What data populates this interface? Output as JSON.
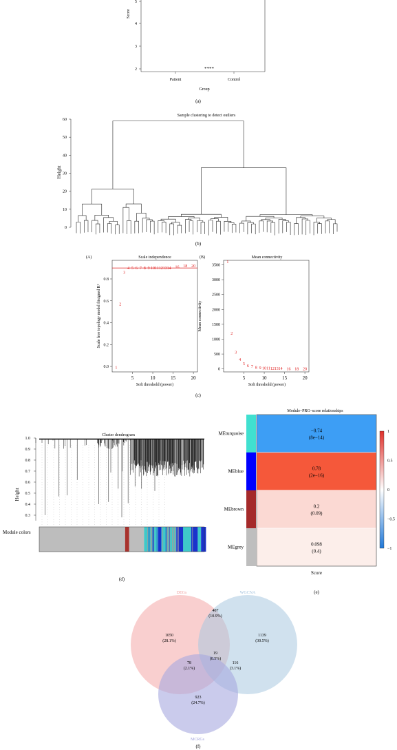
{
  "chart_data": [
    {
      "id": "a",
      "type": "box",
      "panel_label": "(a)",
      "ylabel": "Score",
      "xlabel": "Group",
      "yticks": [
        "2",
        "3",
        "4",
        "5"
      ],
      "categories": [
        "Patient",
        "Control"
      ],
      "significance": "****"
    },
    {
      "id": "b",
      "type": "dendrogram",
      "panel_label": "(b)",
      "title": "Sample clustering to detect outliers",
      "ylabel": "Height",
      "yticks": [
        "0",
        "10",
        "20",
        "30",
        "40",
        "50",
        "60"
      ],
      "ylim": [
        0,
        60
      ],
      "leaf_count": 68,
      "merge_heights": {
        "root": 59,
        "left_subtree": 26,
        "right_subtree": 33,
        "right_inner": 11
      }
    },
    {
      "id": "c",
      "type": "scatter",
      "panel_label": "(c)",
      "subplots": [
        {
          "tag": "(A)",
          "title": "Scale independence",
          "xlabel": "Soft threshold (power)",
          "ylabel": "Scale free topology model fitsigned R²",
          "xticks": [
            "5",
            "10",
            "15",
            "20"
          ],
          "yticks": [
            "0.0",
            "0.2",
            "0.4",
            "0.6",
            "0.8"
          ],
          "xlim": [
            0,
            21
          ],
          "ylim": [
            -0.05,
            0.97
          ],
          "threshold_line": 0.9,
          "points": [
            {
              "x": 1,
              "y": -0.01,
              "label": "1"
            },
            {
              "x": 2,
              "y": 0.57,
              "label": "2"
            },
            {
              "x": 3,
              "y": 0.86,
              "label": "3"
            },
            {
              "x": 4,
              "y": 0.9,
              "label": "4"
            },
            {
              "x": 5,
              "y": 0.9,
              "label": "5"
            },
            {
              "x": 6,
              "y": 0.9,
              "label": "6"
            },
            {
              "x": 7,
              "y": 0.9,
              "label": "7"
            },
            {
              "x": 8,
              "y": 0.9,
              "label": "8"
            },
            {
              "x": 9,
              "y": 0.9,
              "label": "9"
            },
            {
              "x": 10,
              "y": 0.9,
              "label": "10"
            },
            {
              "x": 11,
              "y": 0.9,
              "label": "11"
            },
            {
              "x": 12,
              "y": 0.9,
              "label": "12"
            },
            {
              "x": 13,
              "y": 0.9,
              "label": "13"
            },
            {
              "x": 14,
              "y": 0.9,
              "label": "14"
            },
            {
              "x": 16,
              "y": 0.91,
              "label": "16"
            },
            {
              "x": 18,
              "y": 0.92,
              "label": "18"
            },
            {
              "x": 20,
              "y": 0.92,
              "label": "20"
            }
          ]
        },
        {
          "tag": "(B)",
          "title": "Mean connectivity",
          "xlabel": "Soft threshold (power)",
          "ylabel": "Mean connectivity",
          "xticks": [
            "5",
            "10",
            "15",
            "20"
          ],
          "yticks": [
            "0",
            "500",
            "1000",
            "1500",
            "2000",
            "2500",
            "3000",
            "3500"
          ],
          "xlim": [
            0,
            21
          ],
          "ylim": [
            -100,
            3650
          ],
          "points": [
            {
              "x": 1,
              "y": 3600,
              "label": "1"
            },
            {
              "x": 2,
              "y": 1200,
              "label": "2"
            },
            {
              "x": 3,
              "y": 560,
              "label": "3"
            },
            {
              "x": 4,
              "y": 320,
              "label": "4"
            },
            {
              "x": 5,
              "y": 180,
              "label": "5"
            },
            {
              "x": 6,
              "y": 110,
              "label": "6"
            },
            {
              "x": 7,
              "y": 80,
              "label": "7"
            },
            {
              "x": 8,
              "y": 50,
              "label": "8"
            },
            {
              "x": 9,
              "y": 40,
              "label": "9"
            },
            {
              "x": 10,
              "y": 30,
              "label": "10"
            },
            {
              "x": 11,
              "y": 25,
              "label": "11"
            },
            {
              "x": 12,
              "y": 20,
              "label": "12"
            },
            {
              "x": 13,
              "y": 15,
              "label": "13"
            },
            {
              "x": 14,
              "y": 12,
              "label": "14"
            },
            {
              "x": 16,
              "y": 8,
              "label": "16"
            },
            {
              "x": 18,
              "y": 5,
              "label": "18"
            },
            {
              "x": 20,
              "y": 4,
              "label": "20"
            }
          ]
        }
      ]
    },
    {
      "id": "d",
      "type": "dendrogram",
      "panel_label": "(d)",
      "title": "Cluster dendrogram",
      "ylabel": "Height",
      "yticks": [
        "0.3",
        "0.4",
        "0.5",
        "0.6",
        "0.7",
        "0.8",
        "0.9",
        "1.0"
      ],
      "ylim": [
        0.25,
        1.0
      ],
      "module_colors_label": "Module colors",
      "module_colors": [
        {
          "color": "#bdbdbd",
          "fraction": 0.52
        },
        {
          "color": "#a8322d",
          "fraction": 0.025
        },
        {
          "color": "#bdbdbd",
          "fraction": 0.09
        },
        {
          "color": "#3fc9c9",
          "fraction": 0.085
        },
        {
          "color": "#1a33cc",
          "fraction": 0.02
        },
        {
          "color": "#3fc9c9",
          "fraction": 0.09
        },
        {
          "color": "#1a33cc",
          "fraction": 0.04
        },
        {
          "color": "#3fc9c9",
          "fraction": 0.05
        },
        {
          "color": "#1a33cc",
          "fraction": 0.04
        },
        {
          "color": "#3fc9c9",
          "fraction": 0.02
        },
        {
          "color": "#1a33cc",
          "fraction": 0.03
        }
      ]
    },
    {
      "id": "e",
      "type": "heatmap",
      "panel_label": "(e)",
      "title": "Module–PRG–score relationships",
      "xlabel": "Score",
      "rows": [
        {
          "module": "MEturquoise",
          "color": "#40e0d0",
          "corr": "−0.74",
          "p": "(8e−14)",
          "fill": "#3d9ef5"
        },
        {
          "module": "MEblue",
          "color": "#0000ff",
          "corr": "0.78",
          "p": "(2e−16)",
          "fill": "#f5583a"
        },
        {
          "module": "MEbrown",
          "color": "#a52a2a",
          "corr": "0.2",
          "p": "(0.09)",
          "fill": "#fbd9d3"
        },
        {
          "module": "MEgrey",
          "color": "#bebebe",
          "corr": "0.098",
          "p": "(0.4)",
          "fill": "#fceeea"
        }
      ],
      "legend_ticks": [
        "1",
        "0.5",
        "0",
        "−0.5",
        "−1"
      ]
    },
    {
      "id": "f",
      "type": "venn",
      "panel_label": "(f)",
      "sets": [
        {
          "name": "DEGs",
          "color": "#f4a7a7",
          "label_color": "#f0a0a0"
        },
        {
          "name": "WGCNA",
          "color": "#a9c8e0",
          "label_color": "#9fbfdc"
        },
        {
          "name": "MCRGs",
          "color": "#a7a9e0",
          "label_color": "#a0a2dc"
        }
      ],
      "regions": [
        {
          "region": "DEGs only",
          "count": "1050",
          "pct": "(28.1%)"
        },
        {
          "region": "DEGs & WGCNA",
          "count": "407",
          "pct": "(10.9%)"
        },
        {
          "region": "WGCNA only",
          "count": "1139",
          "pct": "(30.5%)"
        },
        {
          "region": "all three",
          "count": "19",
          "pct": "(0.5%)"
        },
        {
          "region": "DEGs & MCRGs",
          "count": "78",
          "pct": "(2.1%)"
        },
        {
          "region": "WGCNA & MCRGs",
          "count": "116",
          "pct": "(3.1%)"
        },
        {
          "region": "MCRGs only",
          "count": "923",
          "pct": "(24.7%)"
        }
      ]
    }
  ]
}
